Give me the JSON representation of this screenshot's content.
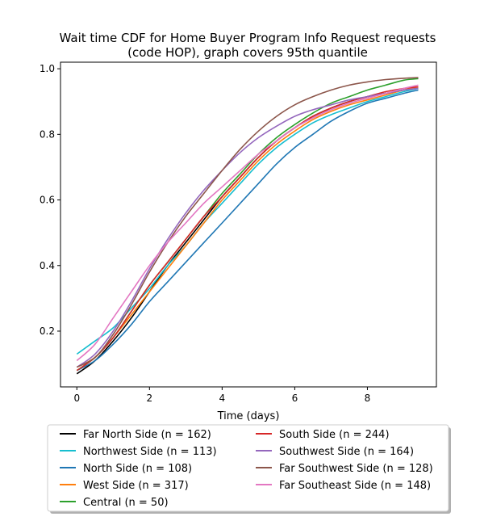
{
  "chart_data": {
    "type": "line",
    "title_line1": "Wait time CDF for Home Buyer Program Info Request  requests",
    "title_line2": "(code HOP), graph covers 95th quantile",
    "xlabel": "Time (days)",
    "ylabel": "",
    "xlim": [
      -0.45,
      9.9
    ],
    "ylim": [
      0.03,
      1.02
    ],
    "xticks": [
      0,
      2,
      4,
      6,
      8
    ],
    "yticks": [
      0.2,
      0.4,
      0.6,
      0.8,
      1.0
    ],
    "xtick_labels": [
      "0",
      "2",
      "4",
      "6",
      "8"
    ],
    "ytick_labels": [
      "0.2",
      "0.4",
      "0.6",
      "0.8",
      "1.0"
    ],
    "grid": false,
    "legend_position": "below plot, two columns",
    "x": [
      0,
      0.5,
      1,
      1.5,
      2,
      2.5,
      3,
      3.5,
      4,
      4.5,
      5,
      5.5,
      6,
      6.5,
      7,
      7.5,
      8,
      8.5,
      9,
      9.4
    ],
    "series": [
      {
        "name": "Far North Side (n = 162)",
        "color": "#000000",
        "values": [
          0.07,
          0.11,
          0.17,
          0.24,
          0.32,
          0.4,
          0.47,
          0.54,
          0.61,
          0.67,
          0.73,
          0.78,
          0.82,
          0.855,
          0.88,
          0.9,
          0.915,
          0.925,
          0.935,
          0.94
        ]
      },
      {
        "name": "Northwest Side (n = 113)",
        "color": "#17becf",
        "values": [
          0.13,
          0.17,
          0.21,
          0.27,
          0.33,
          0.4,
          0.46,
          0.53,
          0.59,
          0.65,
          0.71,
          0.76,
          0.8,
          0.835,
          0.86,
          0.88,
          0.9,
          0.915,
          0.93,
          0.94
        ]
      },
      {
        "name": "North Side (n = 108)",
        "color": "#1f77b4",
        "values": [
          0.08,
          0.11,
          0.16,
          0.22,
          0.29,
          0.35,
          0.41,
          0.47,
          0.53,
          0.59,
          0.65,
          0.71,
          0.76,
          0.8,
          0.84,
          0.87,
          0.895,
          0.91,
          0.925,
          0.935
        ]
      },
      {
        "name": "West Side (n = 317)",
        "color": "#ff7f0e",
        "values": [
          0.09,
          0.12,
          0.18,
          0.25,
          0.32,
          0.39,
          0.46,
          0.53,
          0.6,
          0.66,
          0.72,
          0.77,
          0.81,
          0.845,
          0.87,
          0.89,
          0.905,
          0.92,
          0.935,
          0.945
        ]
      },
      {
        "name": "Central (n = 50)",
        "color": "#2ca02c",
        "values": [
          0.08,
          0.12,
          0.18,
          0.26,
          0.34,
          0.41,
          0.48,
          0.55,
          0.62,
          0.68,
          0.74,
          0.79,
          0.83,
          0.865,
          0.895,
          0.915,
          0.935,
          0.95,
          0.965,
          0.97
        ]
      },
      {
        "name": "South Side (n = 244)",
        "color": "#d62728",
        "values": [
          0.08,
          0.12,
          0.18,
          0.26,
          0.34,
          0.41,
          0.48,
          0.55,
          0.61,
          0.67,
          0.73,
          0.78,
          0.82,
          0.855,
          0.88,
          0.9,
          0.915,
          0.93,
          0.94,
          0.945
        ]
      },
      {
        "name": "Southwest Side (n = 164)",
        "color": "#9467bd",
        "values": [
          0.09,
          0.13,
          0.2,
          0.29,
          0.39,
          0.48,
          0.56,
          0.63,
          0.69,
          0.745,
          0.79,
          0.825,
          0.855,
          0.875,
          0.89,
          0.905,
          0.915,
          0.925,
          0.935,
          0.94
        ]
      },
      {
        "name": "Far Southwest Side (n = 128)",
        "color": "#8c564b",
        "values": [
          0.09,
          0.12,
          0.19,
          0.28,
          0.38,
          0.47,
          0.55,
          0.62,
          0.69,
          0.755,
          0.81,
          0.855,
          0.89,
          0.915,
          0.935,
          0.95,
          0.96,
          0.967,
          0.971,
          0.973
        ]
      },
      {
        "name": "Far Southeast Side (n = 148)",
        "color": "#e377c2",
        "values": [
          0.11,
          0.16,
          0.24,
          0.32,
          0.4,
          0.47,
          0.53,
          0.59,
          0.64,
          0.69,
          0.74,
          0.78,
          0.82,
          0.85,
          0.875,
          0.895,
          0.91,
          0.925,
          0.94,
          0.95
        ]
      }
    ]
  }
}
